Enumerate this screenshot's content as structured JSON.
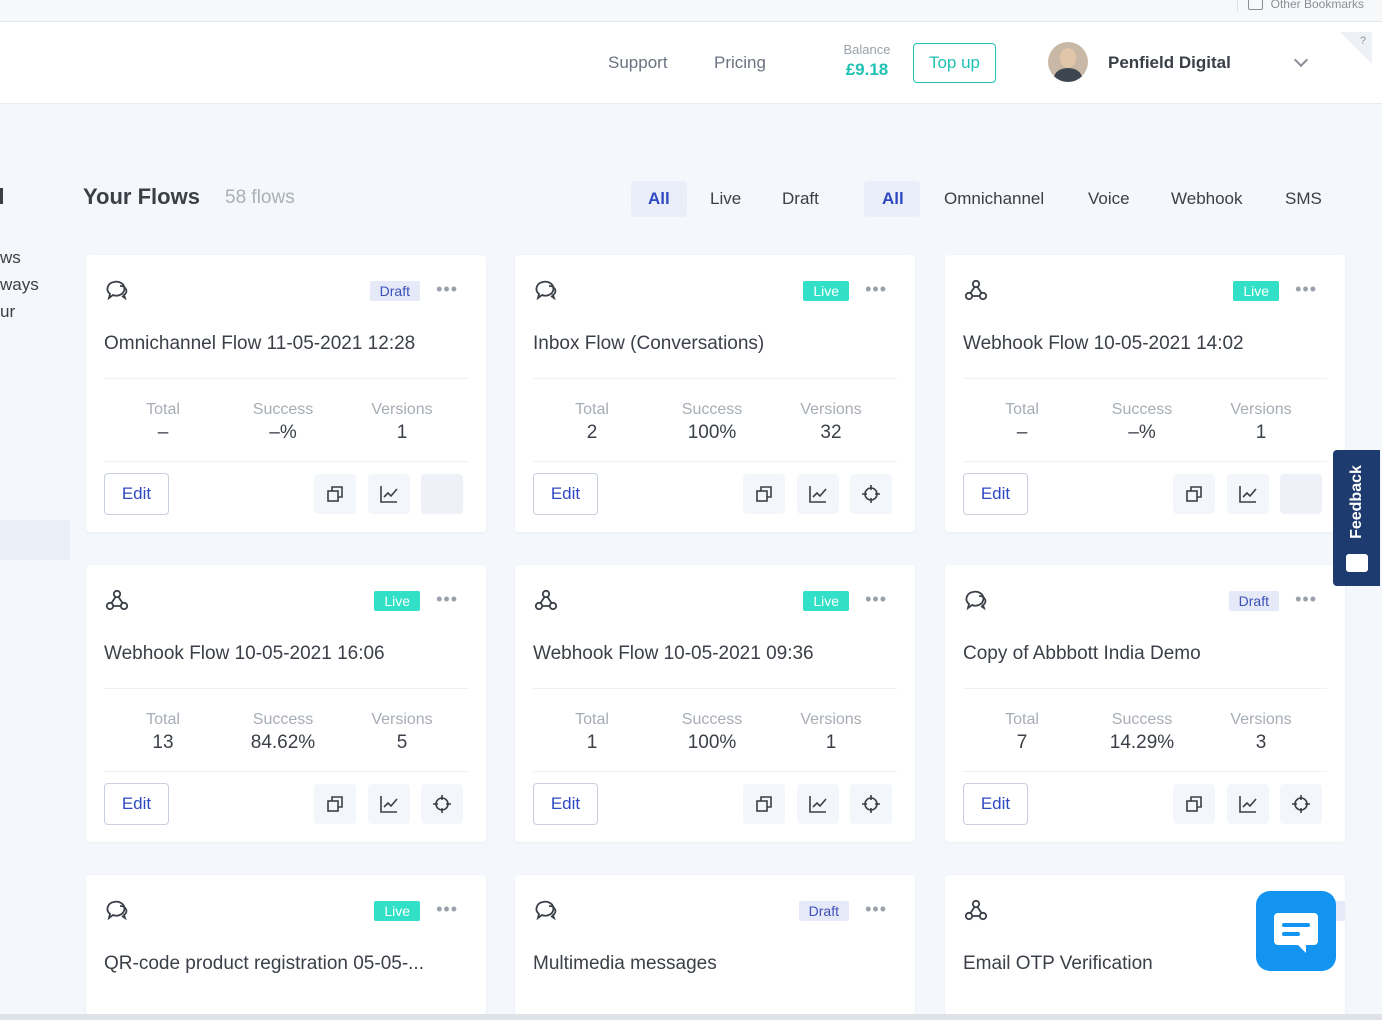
{
  "bookmarks": {
    "other": "Other Bookmarks"
  },
  "header": {
    "support": "Support",
    "pricing": "Pricing",
    "balance_label": "Balance",
    "balance_value": "£9.18",
    "topup": "Top up",
    "account_name": "Penfield Digital",
    "help": "?"
  },
  "sidebar_fragments": [
    "ws",
    "ways",
    "ur"
  ],
  "flows": {
    "title": "Your Flows",
    "count": "58 flows",
    "status_filters": [
      "All",
      "Live",
      "Draft"
    ],
    "type_filters": [
      "All",
      "Omnichannel",
      "Voice",
      "Webhook",
      "SMS"
    ]
  },
  "stat_labels": {
    "total": "Total",
    "success": "Success",
    "versions": "Versions"
  },
  "edit_label": "Edit",
  "more_label": "•••",
  "cards": [
    {
      "icon": "omnichannel-icon",
      "badge": "Draft",
      "title": "Omnichannel Flow 11-05-2021 12:28",
      "total": "–",
      "success": "–%",
      "versions": "1"
    },
    {
      "icon": "omnichannel-icon",
      "badge": "Live",
      "title": "Inbox Flow (Conversations)",
      "total": "2",
      "success": "100%",
      "versions": "32"
    },
    {
      "icon": "webhook-icon",
      "badge": "Live",
      "title": "Webhook Flow 10-05-2021 14:02",
      "total": "–",
      "success": "–%",
      "versions": "1"
    },
    {
      "icon": "webhook-icon",
      "badge": "Live",
      "title": "Webhook Flow 10-05-2021 16:06",
      "total": "13",
      "success": "84.62%",
      "versions": "5"
    },
    {
      "icon": "webhook-icon",
      "badge": "Live",
      "title": "Webhook Flow 10-05-2021 09:36",
      "total": "1",
      "success": "100%",
      "versions": "1"
    },
    {
      "icon": "omnichannel-icon",
      "badge": "Draft",
      "title": "Copy of Abbbott India Demo",
      "total": "7",
      "success": "14.29%",
      "versions": "3"
    },
    {
      "icon": "omnichannel-icon",
      "badge": "Live",
      "title": "QR-code product registration 05-05-...",
      "total": "",
      "success": "",
      "versions": ""
    },
    {
      "icon": "omnichannel-icon",
      "badge": "Draft",
      "title": "Multimedia messages",
      "total": "",
      "success": "",
      "versions": ""
    },
    {
      "icon": "webhook-icon",
      "badge": "Dra",
      "title": "Email OTP Verification",
      "total": "",
      "success": "",
      "versions": ""
    }
  ],
  "feedback": "Feedback",
  "colors": {
    "brand_teal": "#1fc1b4",
    "brand_blue": "#2f49c2",
    "live": "#31e0c6",
    "feedback": "#1d3b6e",
    "chat": "#1394f0"
  }
}
